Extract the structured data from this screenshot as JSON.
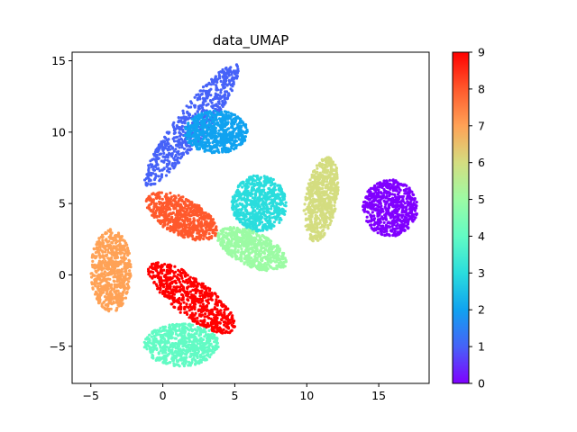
{
  "chart_data": {
    "type": "scatter",
    "title": "data_UMAP",
    "xlabel": "",
    "ylabel": "",
    "xlim": [
      -6.3,
      18.5
    ],
    "ylim": [
      -7.6,
      15.6
    ],
    "x_ticks": [
      -5,
      0,
      5,
      10,
      15
    ],
    "y_ticks": [
      -5,
      0,
      5,
      10,
      15
    ],
    "grid": false,
    "colorbar": {
      "colormap": "rainbow",
      "range": [
        0,
        9
      ],
      "ticks": [
        0,
        1,
        2,
        3,
        4,
        5,
        6,
        7,
        8,
        9
      ]
    },
    "clusters": [
      {
        "label": 0,
        "color": "#8000ff",
        "center": [
          15.8,
          4.7
        ],
        "semi_axes": [
          1.9,
          2.0
        ],
        "angle_deg": 0
      },
      {
        "label": 1,
        "color": "#4662f8",
        "center": [
          2.0,
          10.5
        ],
        "semi_axes": [
          5.3,
          1.1
        ],
        "angle_deg": 53
      },
      {
        "label": 2,
        "color": "#10a2f0",
        "center": [
          3.7,
          10.0
        ],
        "semi_axes": [
          2.2,
          1.5
        ],
        "angle_deg": 0
      },
      {
        "label": 3,
        "color": "#2adddd",
        "center": [
          6.7,
          5.0
        ],
        "semi_axes": [
          1.9,
          2.0
        ],
        "angle_deg": 0
      },
      {
        "label": 4,
        "color": "#62fbc4",
        "center": [
          1.3,
          -4.9
        ],
        "semi_axes": [
          2.6,
          1.5
        ],
        "angle_deg": 0
      },
      {
        "label": 5,
        "color": "#9cfba4",
        "center": [
          6.2,
          1.8
        ],
        "semi_axes": [
          2.6,
          1.2
        ],
        "angle_deg": -25
      },
      {
        "label": 6,
        "color": "#d4dd80",
        "center": [
          11.0,
          5.3
        ],
        "semi_axes": [
          3.0,
          1.1
        ],
        "angle_deg": 80
      },
      {
        "label": 7,
        "color": "#ffa256",
        "center": [
          -3.6,
          0.3
        ],
        "semi_axes": [
          2.9,
          1.4
        ],
        "angle_deg": 90
      },
      {
        "label": 8,
        "color": "#ff592c",
        "center": [
          1.3,
          4.1
        ],
        "semi_axes": [
          2.7,
          1.3
        ],
        "angle_deg": -28
      },
      {
        "label": 9,
        "color": "#ff0000",
        "center": [
          2.0,
          -1.6
        ],
        "semi_axes": [
          3.7,
          1.3
        ],
        "angle_deg": -38
      }
    ]
  }
}
